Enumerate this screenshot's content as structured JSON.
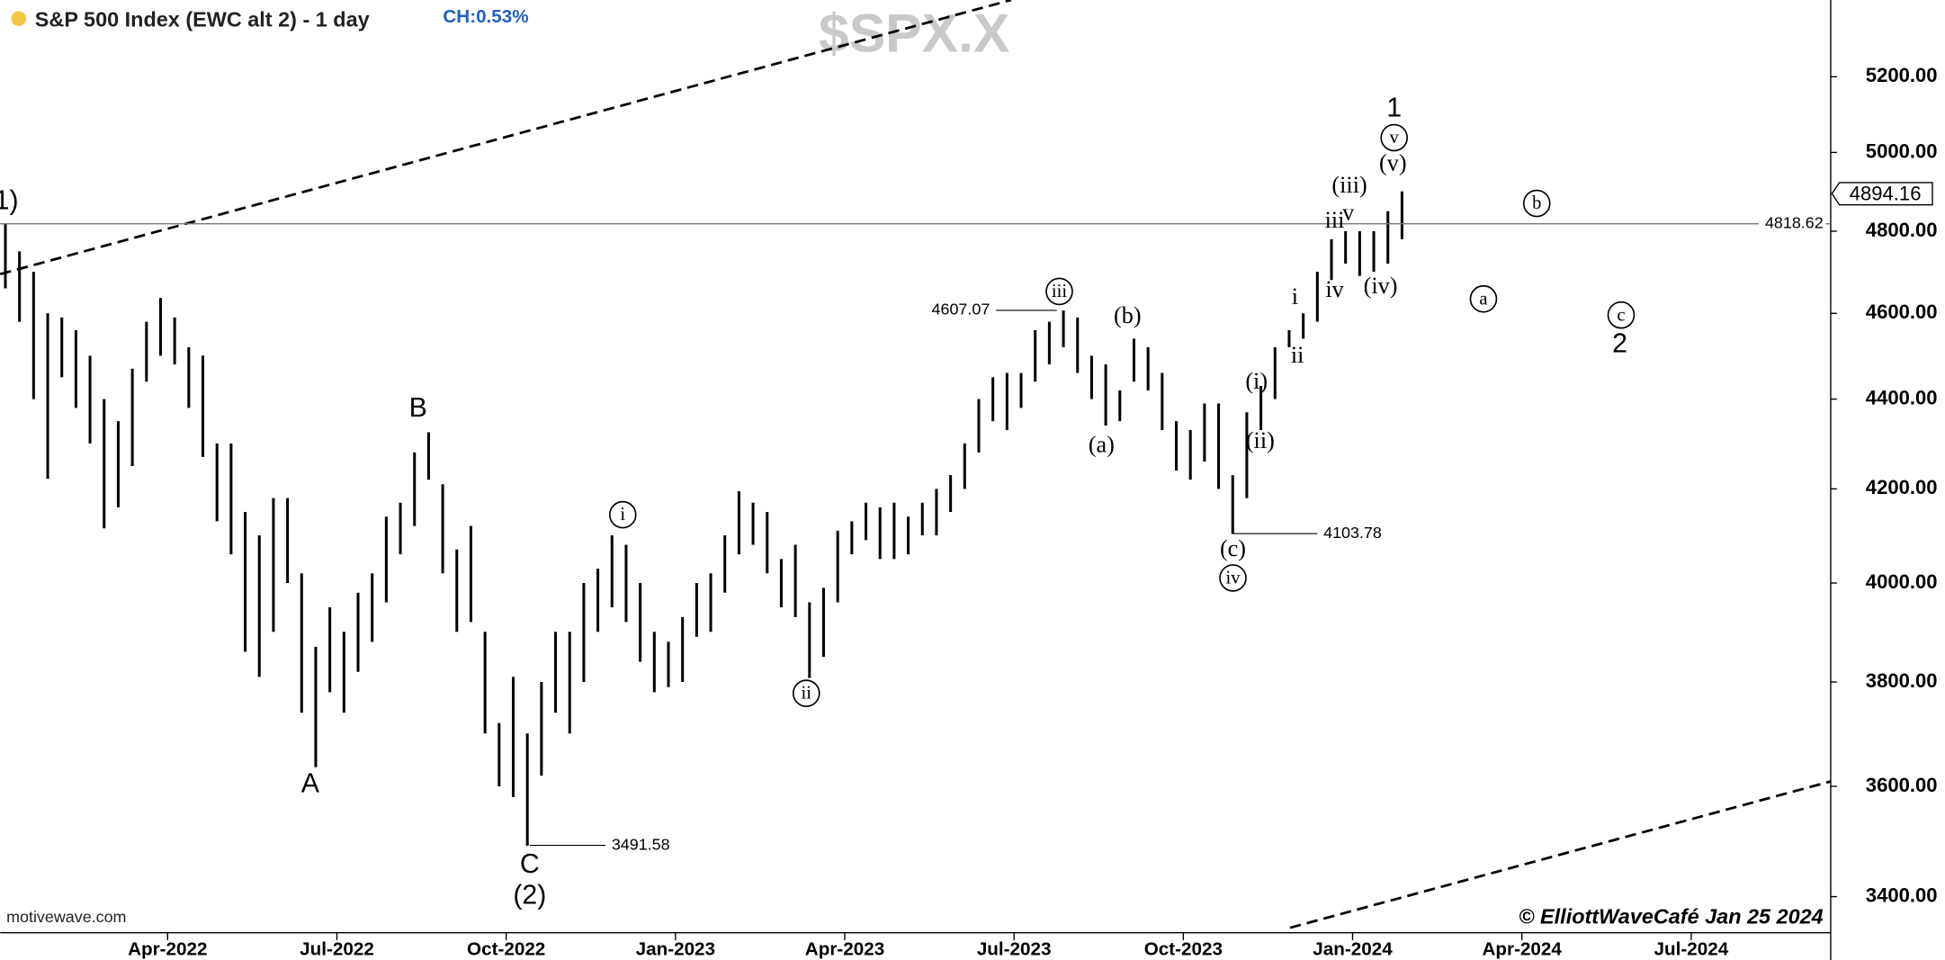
{
  "chart_data": {
    "type": "ohlc",
    "title": "S&P 500 Index (EWC alt 2) - 1 day",
    "change_label": "CH:0.53%",
    "watermark": "$SPX.X",
    "source": "motivewave.com",
    "credit": "© ElliottWaveCafé Jan 25 2024",
    "log": true,
    "color": "#000000",
    "ylim": [
      3337,
      5411
    ],
    "yticks": [
      {
        "value": 3400,
        "label": "3400.00"
      },
      {
        "value": 3600,
        "label": "3600.00"
      },
      {
        "value": 3800,
        "label": "3800.00"
      },
      {
        "value": 4000,
        "label": "4000.00"
      },
      {
        "value": 4200,
        "label": "4200.00"
      },
      {
        "value": 4400,
        "label": "4400.00"
      },
      {
        "value": 4600,
        "label": "4600.00"
      },
      {
        "value": 4800,
        "label": "4800.00"
      },
      {
        "value": 5000,
        "label": "5000.00"
      },
      {
        "value": 5200,
        "label": "5200.00"
      }
    ],
    "xlim": [
      "2022-01",
      "2024-09"
    ],
    "xticks": [
      {
        "value": "2022-04",
        "label": "Apr-2022"
      },
      {
        "value": "2022-07",
        "label": "Jul-2022"
      },
      {
        "value": "2022-10",
        "label": "Oct-2022"
      },
      {
        "value": "2023-01",
        "label": "Jan-2023"
      },
      {
        "value": "2023-04",
        "label": "Apr-2023"
      },
      {
        "value": "2023-07",
        "label": "Jul-2023"
      },
      {
        "value": "2023-10",
        "label": "Oct-2023"
      },
      {
        "value": "2024-01",
        "label": "Jan-2024"
      },
      {
        "value": "2024-04",
        "label": "Apr-2024"
      },
      {
        "value": "2024-07",
        "label": "Jul-2024"
      }
    ],
    "x": [
      "2022-01",
      "2022-01",
      "2022-01",
      "2022-01",
      "2022-02",
      "2022-02",
      "2022-02",
      "2022-02",
      "2022-03",
      "2022-03",
      "2022-03",
      "2022-03",
      "2022-04",
      "2022-04",
      "2022-04",
      "2022-04",
      "2022-05",
      "2022-05",
      "2022-05",
      "2022-05",
      "2022-06",
      "2022-06",
      "2022-06",
      "2022-06",
      "2022-07",
      "2022-07",
      "2022-07",
      "2022-07",
      "2022-08",
      "2022-08",
      "2022-08",
      "2022-08",
      "2022-09",
      "2022-09",
      "2022-09",
      "2022-09",
      "2022-10",
      "2022-10",
      "2022-10",
      "2022-10",
      "2022-11",
      "2022-11",
      "2022-11",
      "2022-11",
      "2022-12",
      "2022-12",
      "2022-12",
      "2022-12",
      "2023-01",
      "2023-01",
      "2023-01",
      "2023-01",
      "2023-02",
      "2023-02",
      "2023-02",
      "2023-02",
      "2023-03",
      "2023-03",
      "2023-03",
      "2023-03",
      "2023-04",
      "2023-04",
      "2023-04",
      "2023-04",
      "2023-05",
      "2023-05",
      "2023-05",
      "2023-05",
      "2023-06",
      "2023-06",
      "2023-06",
      "2023-06",
      "2023-07",
      "2023-07",
      "2023-07",
      "2023-07",
      "2023-08",
      "2023-08",
      "2023-08",
      "2023-08",
      "2023-09",
      "2023-09",
      "2023-09",
      "2023-09",
      "2023-10",
      "2023-10",
      "2023-10",
      "2023-10",
      "2023-11",
      "2023-11",
      "2023-11",
      "2023-11",
      "2023-12",
      "2023-12",
      "2023-12",
      "2023-12",
      "2024-01",
      "2024-01",
      "2024-01",
      "2024-01"
    ],
    "high": [
      4818,
      4750,
      4700,
      4600,
      4590,
      4560,
      4500,
      4400,
      4350,
      4470,
      4580,
      4637,
      4590,
      4520,
      4500,
      4300,
      4300,
      4150,
      4100,
      4180,
      4180,
      4020,
      3870,
      3950,
      3900,
      3980,
      4020,
      4140,
      4170,
      4280,
      4325,
      4210,
      4070,
      4120,
      3900,
      3720,
      3810,
      3700,
      3800,
      3900,
      3900,
      4000,
      4030,
      4100,
      4080,
      4000,
      3900,
      3880,
      3930,
      4000,
      4020,
      4100,
      4195,
      4170,
      4150,
      4050,
      4080,
      3960,
      3990,
      4110,
      4130,
      4170,
      4160,
      4170,
      4140,
      4170,
      4200,
      4230,
      4300,
      4400,
      4450,
      4460,
      4460,
      4560,
      4580,
      4607,
      4590,
      4500,
      4480,
      4420,
      4540,
      4520,
      4460,
      4350,
      4330,
      4390,
      4390,
      4230,
      4370,
      4430,
      4520,
      4560,
      4600,
      4700,
      4780,
      4800,
      4800,
      4800,
      4850,
      4900
    ],
    "low": [
      4660,
      4580,
      4400,
      4222,
      4450,
      4380,
      4300,
      4115,
      4160,
      4250,
      4440,
      4500,
      4480,
      4380,
      4270,
      4130,
      4060,
      3860,
      3810,
      3900,
      4000,
      3740,
      3636,
      3780,
      3740,
      3820,
      3880,
      3960,
      4060,
      4120,
      4220,
      4020,
      3900,
      3920,
      3700,
      3600,
      3580,
      3491,
      3620,
      3740,
      3700,
      3800,
      3900,
      3950,
      3920,
      3840,
      3780,
      3790,
      3800,
      3890,
      3900,
      3980,
      4060,
      4080,
      4020,
      3950,
      3930,
      3808,
      3850,
      3960,
      4060,
      4090,
      4050,
      4050,
      4060,
      4100,
      4100,
      4150,
      4200,
      4280,
      4350,
      4330,
      4380,
      4440,
      4480,
      4520,
      4460,
      4400,
      4340,
      4350,
      4440,
      4420,
      4330,
      4240,
      4220,
      4260,
      4200,
      4103,
      4180,
      4330,
      4400,
      4520,
      4540,
      4580,
      4680,
      4720,
      4690,
      4700,
      4720,
      4780
    ],
    "reference_lines": [
      {
        "value": 4818.62
      }
    ],
    "last_price": 4894.16,
    "price_labels": [
      {
        "value": 4607.07
      },
      {
        "value": 3491.58
      },
      {
        "value": 4103.78
      }
    ],
    "wave_labels": [
      {
        "text": "1)",
        "circled": false
      },
      {
        "text": "B",
        "circled": false
      },
      {
        "text": "A",
        "circled": false
      },
      {
        "text": "C",
        "circled": false
      },
      {
        "text": "(2)",
        "circled": false
      },
      {
        "text": "i",
        "circled": true
      },
      {
        "text": "ii",
        "circled": true
      },
      {
        "text": "iii",
        "circled": true
      },
      {
        "text": "(a)",
        "circled": false
      },
      {
        "text": "(b)",
        "circled": false
      },
      {
        "text": "(c)",
        "circled": false
      },
      {
        "text": "iv",
        "circled": true
      },
      {
        "text": "(i)",
        "circled": false
      },
      {
        "text": "(ii)",
        "circled": false
      },
      {
        "text": "i",
        "circled": false
      },
      {
        "text": "ii",
        "circled": false
      },
      {
        "text": "iii",
        "circled": false
      },
      {
        "text": "v",
        "circled": false
      },
      {
        "text": "iv",
        "circled": false
      },
      {
        "text": "(iii)",
        "circled": false
      },
      {
        "text": "(iv)",
        "circled": false
      },
      {
        "text": "(v)",
        "circled": false
      },
      {
        "text": "v",
        "circled": true
      },
      {
        "text": "1",
        "circled": false
      },
      {
        "text": "b",
        "circled": true
      },
      {
        "text": "a",
        "circled": true
      },
      {
        "text": "c",
        "circled": true
      },
      {
        "text": "2",
        "circled": false
      }
    ]
  }
}
